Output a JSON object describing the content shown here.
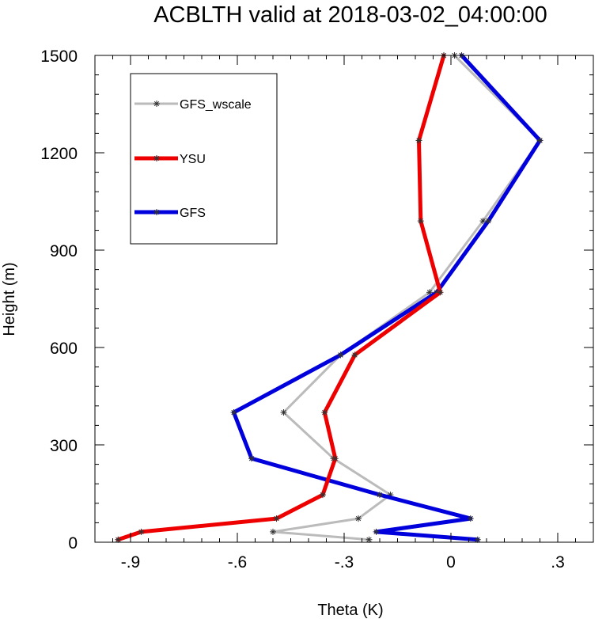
{
  "chart_data": {
    "type": "line",
    "title": "ACBLTH valid at 2018-03-02_04:00:00",
    "xlabel": "Theta (K)",
    "ylabel": "Height (m)",
    "xlim": [
      -1.0,
      0.4
    ],
    "ylim": [
      0,
      1500
    ],
    "x_ticks": [
      -0.9,
      -0.6,
      -0.3,
      0,
      0.3
    ],
    "x_tick_labels": [
      "-.9",
      "-.6",
      "-.3",
      "0",
      ".3"
    ],
    "y_ticks": [
      0,
      300,
      600,
      900,
      1200,
      1500
    ],
    "y_tick_labels": [
      "0",
      "300",
      "600",
      "900",
      "1200",
      "1500"
    ],
    "grid": false,
    "legend_position": "top-left",
    "series": [
      {
        "name": "GFS_wscale",
        "color": "#bbbbbb",
        "points": [
          [
            -0.23,
            8
          ],
          [
            -0.5,
            32
          ],
          [
            -0.26,
            73
          ],
          [
            -0.17,
            146
          ],
          [
            -0.33,
            258
          ],
          [
            -0.47,
            400
          ],
          [
            -0.31,
            577
          ],
          [
            -0.06,
            770
          ],
          [
            0.09,
            990
          ],
          [
            0.25,
            1238
          ],
          [
            0.01,
            1500
          ]
        ]
      },
      {
        "name": "YSU",
        "color": "#ee0000",
        "points": [
          [
            -0.935,
            8
          ],
          [
            -0.87,
            32
          ],
          [
            -0.49,
            73
          ],
          [
            -0.36,
            146
          ],
          [
            -0.325,
            258
          ],
          [
            -0.355,
            400
          ],
          [
            -0.27,
            577
          ],
          [
            -0.03,
            770
          ],
          [
            -0.085,
            990
          ],
          [
            -0.09,
            1238
          ],
          [
            -0.02,
            1500
          ]
        ]
      },
      {
        "name": "GFS",
        "color": "#0000dd",
        "points": [
          [
            0.075,
            8
          ],
          [
            -0.21,
            32
          ],
          [
            0.055,
            73
          ],
          [
            -0.2,
            146
          ],
          [
            -0.56,
            258
          ],
          [
            -0.61,
            400
          ],
          [
            -0.31,
            577
          ],
          [
            -0.04,
            770
          ],
          [
            0.105,
            990
          ],
          [
            0.25,
            1238
          ],
          [
            0.03,
            1500
          ]
        ]
      }
    ]
  }
}
